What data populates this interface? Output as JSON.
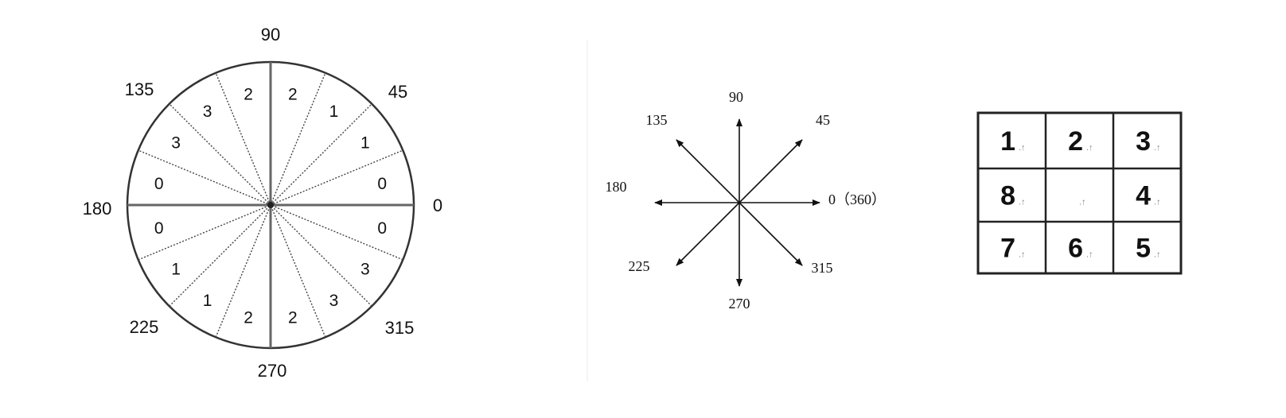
{
  "circle_diagram": {
    "angle_labels": [
      "0",
      "45",
      "90",
      "135",
      "180",
      "225",
      "270",
      "315"
    ],
    "sector_codes": [
      "0",
      "1",
      "1",
      "2",
      "2",
      "3",
      "3",
      "0",
      "0",
      "1",
      "1",
      "2",
      "2",
      "3",
      "3",
      "0"
    ]
  },
  "arrow_diagram": {
    "labels": [
      "0（360）",
      "45",
      "90",
      "135",
      "180",
      "225",
      "270",
      "315"
    ]
  },
  "grid": {
    "rows": [
      [
        "1",
        "2",
        "3"
      ],
      [
        "8",
        "",
        "4"
      ],
      [
        "7",
        "6",
        "5"
      ]
    ],
    "mark": ".↑"
  }
}
